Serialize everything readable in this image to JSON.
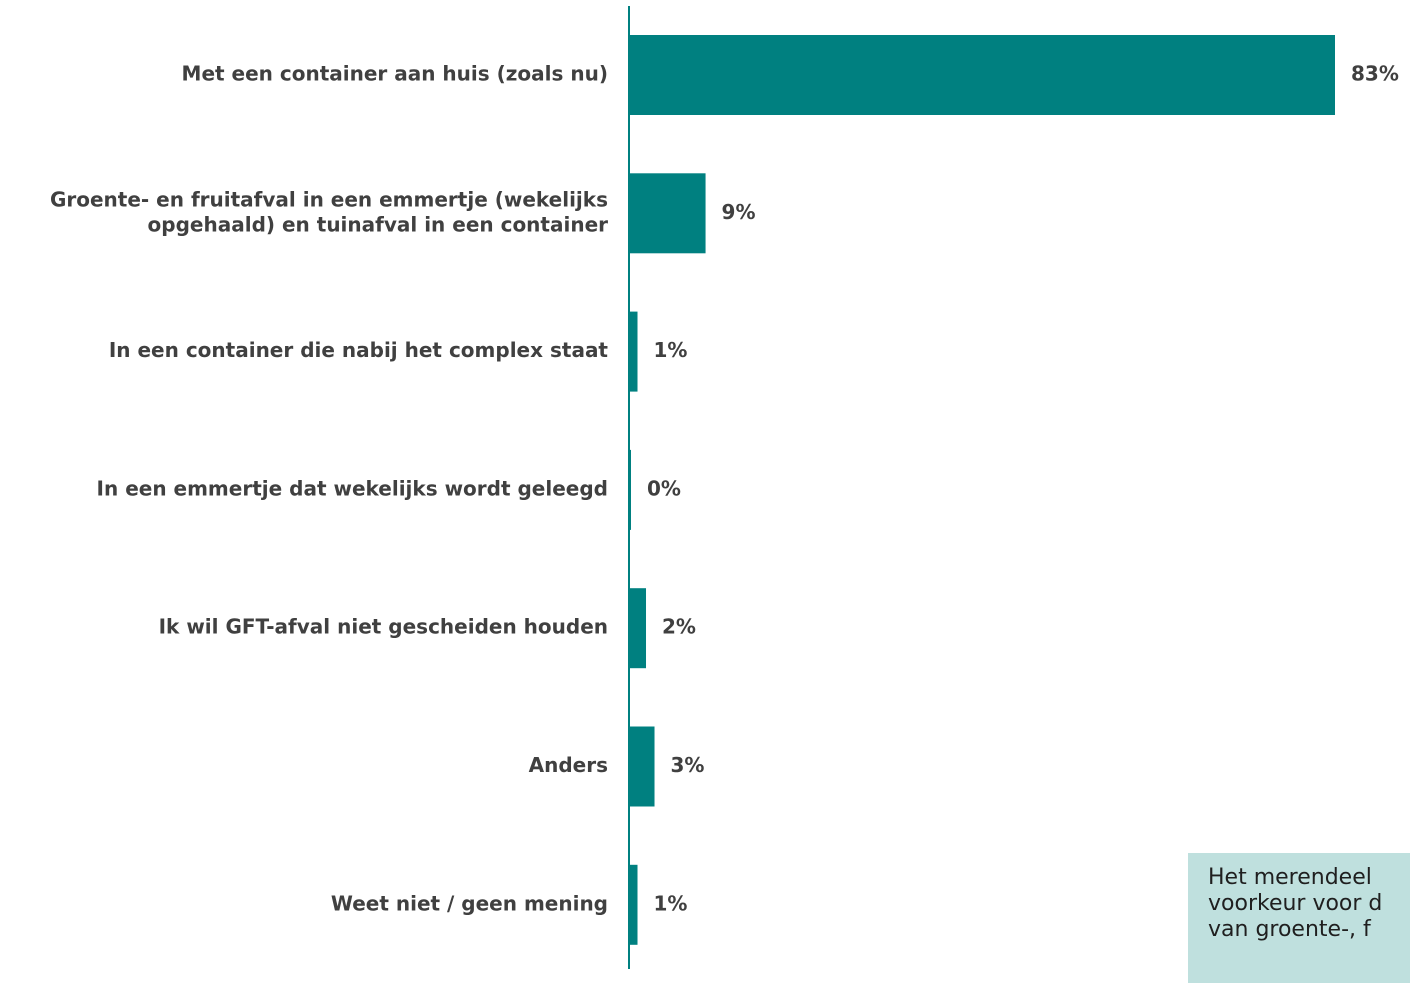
{
  "chart_data": {
    "type": "bar",
    "orientation": "horizontal",
    "categories": [
      [
        "Met een container aan huis (zoals nu)"
      ],
      [
        "Groente- en fruitafval in een emmertje (wekelijks",
        "opgehaald) en tuinafval in een container"
      ],
      [
        "In een container die nabij het complex staat"
      ],
      [
        "In een emmertje dat wekelijks wordt geleegd"
      ],
      [
        "Ik wil GFT-afval niet gescheiden houden"
      ],
      [
        "Anders"
      ],
      [
        "Weet niet / geen mening"
      ]
    ],
    "values": [
      83,
      9,
      1,
      0,
      2,
      3,
      1
    ],
    "value_labels": [
      "83%",
      "9%",
      "1%",
      "0%",
      "2%",
      "3%",
      "1%"
    ],
    "unit": "%",
    "bar_color": "#008080",
    "axis_color": "#008080",
    "grid": false,
    "xlim": [
      0,
      83
    ]
  },
  "callout": {
    "lines": [
      "Het merendeel",
      "voorkeur voor d",
      "van groente-, f"
    ],
    "background": "#bfe0de"
  }
}
